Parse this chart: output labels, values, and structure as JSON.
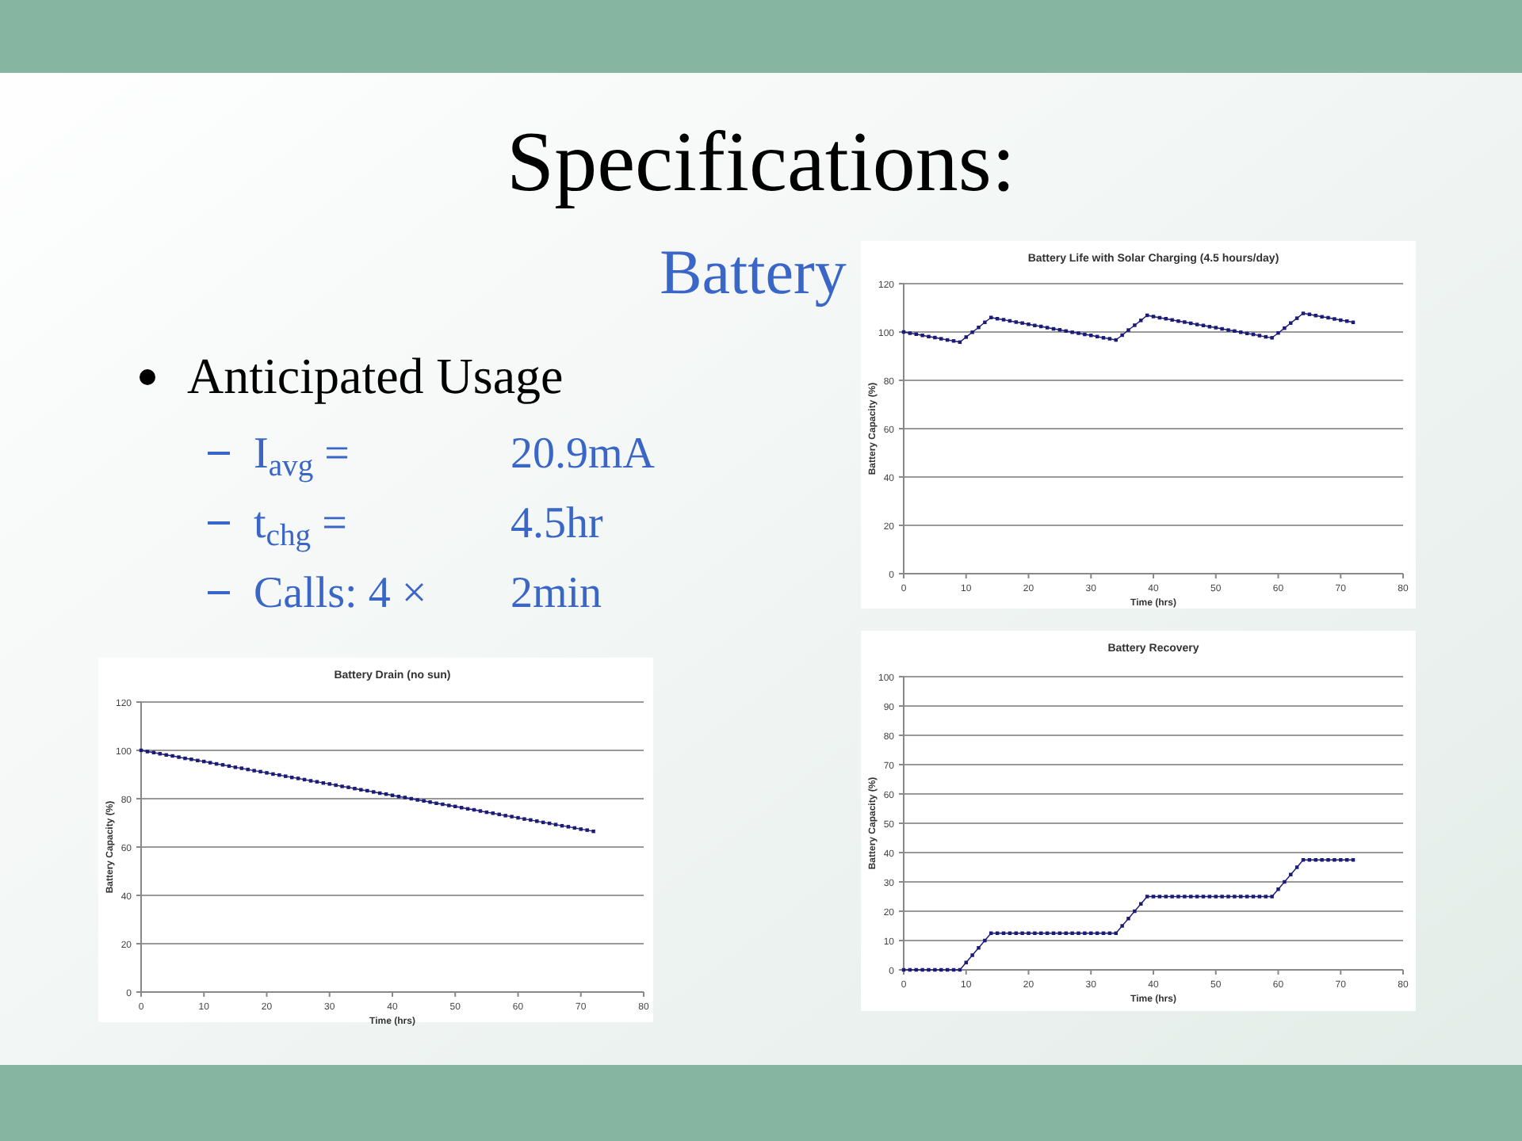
{
  "chart_data": [
    {
      "type": "other",
      "title": "Specifications:",
      "subtitle": "Battery",
      "annotations": [
        "Anticipated Usage",
        "I$_{avg}$ =",
        "20.9mA",
        "t$_{chg}$ =",
        "4.5hr",
        "Calls: 4 ×",
        "2min"
      ]
    },
    {
      "type": "line",
      "title": "Battery Life with Solar Charging (4.5 hours/day)",
      "xlabel": "Time (hrs)",
      "ylabel": "Battery Capacity (%)",
      "xlim": [
        0,
        80
      ],
      "xticks": [
        0,
        10,
        20,
        30,
        40,
        50,
        60,
        70,
        80
      ],
      "ylim": [
        0,
        120
      ],
      "yticks": [
        0,
        20,
        40,
        60,
        80,
        100,
        120
      ],
      "grid": "y",
      "marker": "square",
      "x": [
        0,
        1,
        2,
        3,
        4,
        5,
        6,
        7,
        8,
        9,
        10,
        11,
        12,
        13,
        14,
        15,
        16,
        17,
        18,
        19,
        20,
        21,
        22,
        23,
        24,
        25,
        26,
        27,
        28,
        29,
        30,
        31,
        32,
        33,
        34,
        35,
        36,
        37,
        38,
        39,
        40,
        41,
        42,
        43,
        44,
        45,
        46,
        47,
        48,
        49,
        50,
        51,
        52,
        53,
        54,
        55,
        56,
        57,
        58,
        59,
        60,
        61,
        62,
        63,
        64,
        65,
        66,
        67,
        68,
        69,
        70,
        71,
        72
      ],
      "series": [
        {
          "color": "#1c1c78",
          "values": [
            100,
            99.5,
            99.1,
            98.6,
            98.1,
            97.7,
            97.2,
            96.7,
            96.3,
            95.8,
            97.9,
            99.9,
            101.9,
            104,
            106,
            105.5,
            105.1,
            104.6,
            104.1,
            103.7,
            103.2,
            102.7,
            102.3,
            101.8,
            101.3,
            100.9,
            100.4,
            99.9,
            99.5,
            99,
            98.6,
            98.1,
            97.6,
            97.2,
            96.7,
            98.7,
            100.8,
            102.8,
            104.8,
            106.9,
            106.4,
            105.9,
            105.5,
            105,
            104.5,
            104.1,
            103.6,
            103.1,
            102.7,
            102.2,
            101.8,
            101.3,
            100.8,
            100.4,
            99.9,
            99.4,
            99,
            98.5,
            98,
            97.6,
            99.6,
            101.6,
            103.7,
            105.7,
            107.7,
            107.3,
            106.8,
            106.3,
            105.9,
            105.4,
            104.9,
            104.5,
            104
          ]
        }
      ]
    },
    {
      "type": "line",
      "title": "Battery Drain (no sun)",
      "xlabel": "Time (hrs)",
      "ylabel": "Battery Capacity (%)",
      "xlim": [
        0,
        80
      ],
      "xticks": [
        0,
        10,
        20,
        30,
        40,
        50,
        60,
        70,
        80
      ],
      "ylim": [
        0,
        120
      ],
      "yticks": [
        0,
        20,
        40,
        60,
        80,
        100,
        120
      ],
      "grid": "y",
      "marker": "square",
      "x": [
        0,
        1,
        2,
        3,
        4,
        5,
        6,
        7,
        8,
        9,
        10,
        11,
        12,
        13,
        14,
        15,
        16,
        17,
        18,
        19,
        20,
        21,
        22,
        23,
        24,
        25,
        26,
        27,
        28,
        29,
        30,
        31,
        32,
        33,
        34,
        35,
        36,
        37,
        38,
        39,
        40,
        41,
        42,
        43,
        44,
        45,
        46,
        47,
        48,
        49,
        50,
        51,
        52,
        53,
        54,
        55,
        56,
        57,
        58,
        59,
        60,
        61,
        62,
        63,
        64,
        65,
        66,
        67,
        68,
        69,
        70,
        71,
        72
      ],
      "series": [
        {
          "color": "#1c1c78",
          "values": [
            100,
            99.5,
            99.1,
            98.6,
            98.1,
            97.7,
            97.2,
            96.7,
            96.3,
            95.8,
            95.4,
            94.9,
            94.4,
            94,
            93.5,
            93,
            92.6,
            92.1,
            91.6,
            91.2,
            90.7,
            90.2,
            89.8,
            89.3,
            88.8,
            88.4,
            87.9,
            87.4,
            87,
            86.5,
            86.1,
            85.6,
            85.1,
            84.7,
            84.2,
            83.7,
            83.3,
            82.8,
            82.3,
            81.9,
            81.4,
            80.9,
            80.5,
            80,
            79.5,
            79.1,
            78.6,
            78.1,
            77.7,
            77.2,
            76.8,
            76.3,
            75.8,
            75.4,
            74.9,
            74.4,
            74,
            73.5,
            73,
            72.6,
            72.1,
            71.6,
            71.2,
            70.7,
            70.2,
            69.8,
            69.3,
            68.8,
            68.4,
            67.9,
            67.4,
            67,
            66.5
          ]
        }
      ]
    },
    {
      "type": "line",
      "title": "Battery Recovery",
      "xlabel": "Time (hrs)",
      "ylabel": "Battery Capacity (%)",
      "xlim": [
        0,
        80
      ],
      "xticks": [
        0,
        10,
        20,
        30,
        40,
        50,
        60,
        70,
        80
      ],
      "ylim": [
        0,
        100
      ],
      "yticks": [
        0,
        10,
        20,
        30,
        40,
        50,
        60,
        70,
        80,
        90,
        100
      ],
      "grid": "y",
      "marker": "square",
      "x": [
        0,
        1,
        2,
        3,
        4,
        5,
        6,
        7,
        8,
        9,
        10,
        11,
        12,
        13,
        14,
        15,
        16,
        17,
        18,
        19,
        20,
        21,
        22,
        23,
        24,
        25,
        26,
        27,
        28,
        29,
        30,
        31,
        32,
        33,
        34,
        35,
        36,
        37,
        38,
        39,
        40,
        41,
        42,
        43,
        44,
        45,
        46,
        47,
        48,
        49,
        50,
        51,
        52,
        53,
        54,
        55,
        56,
        57,
        58,
        59,
        60,
        61,
        62,
        63,
        64,
        65,
        66,
        67,
        68,
        69,
        70,
        71,
        72
      ],
      "series": [
        {
          "color": "#1c1c78",
          "values": [
            0,
            0,
            0,
            0,
            0,
            0,
            0,
            0,
            0,
            0,
            2.5,
            5,
            7.5,
            10,
            12.5,
            12.5,
            12.5,
            12.5,
            12.5,
            12.5,
            12.5,
            12.5,
            12.5,
            12.5,
            12.5,
            12.5,
            12.5,
            12.5,
            12.5,
            12.5,
            12.5,
            12.5,
            12.5,
            12.5,
            12.5,
            15,
            17.5,
            20,
            22.5,
            25,
            25,
            25,
            25,
            25,
            25,
            25,
            25,
            25,
            25,
            25,
            25,
            25,
            25,
            25,
            25,
            25,
            25,
            25,
            25,
            25,
            27.5,
            30,
            32.5,
            35,
            37.5,
            37.5,
            37.5,
            37.5,
            37.5,
            37.5,
            37.5,
            37.5,
            37.5
          ]
        }
      ]
    }
  ]
}
